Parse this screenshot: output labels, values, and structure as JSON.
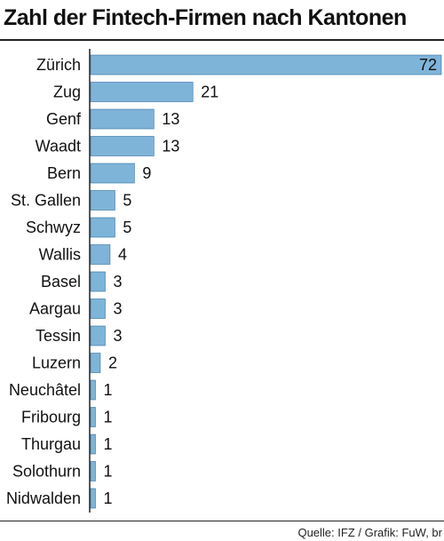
{
  "chart_data": {
    "type": "bar",
    "orientation": "horizontal",
    "title": "Zahl der Fintech-Firmen nach Kantonen",
    "categories": [
      "Zürich",
      "Zug",
      "Genf",
      "Waadt",
      "Bern",
      "St. Gallen",
      "Schwyz",
      "Wallis",
      "Basel",
      "Aargau",
      "Tessin",
      "Luzern",
      "Neuchâtel",
      "Fribourg",
      "Thurgau",
      "Solothurn",
      "Nidwalden"
    ],
    "values": [
      72,
      21,
      13,
      13,
      9,
      5,
      5,
      4,
      3,
      3,
      3,
      2,
      1,
      1,
      1,
      1,
      1
    ],
    "xlim": [
      0,
      72
    ],
    "bar_color": "#7fb4d9",
    "bar_border_color": "#2f6f9f",
    "grid": false,
    "legend": "none"
  },
  "footer": {
    "source": "Quelle: IFZ / Grafik: FuW, br"
  }
}
